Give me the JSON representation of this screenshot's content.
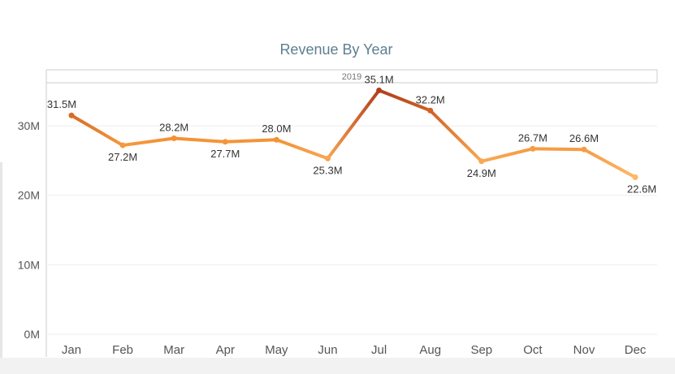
{
  "chart_data": {
    "type": "line",
    "title": "Revenue By Year",
    "panel_header": "2019",
    "categories": [
      "Jan",
      "Feb",
      "Mar",
      "Apr",
      "May",
      "Jun",
      "Jul",
      "Aug",
      "Sep",
      "Oct",
      "Nov",
      "Dec"
    ],
    "series": [
      {
        "values": [
          31.5,
          27.2,
          28.2,
          27.7,
          28.0,
          25.3,
          35.1,
          32.2,
          24.9,
          26.7,
          26.6,
          22.6
        ],
        "labels": [
          "31.5M",
          "27.2M",
          "28.2M",
          "27.7M",
          "28.0M",
          "25.3M",
          "35.1M",
          "32.2M",
          "24.9M",
          "26.7M",
          "26.6M",
          "22.6M"
        ],
        "label_positions": [
          "above",
          "below",
          "above",
          "below",
          "above",
          "below",
          "above",
          "above",
          "below",
          "above",
          "above",
          "below"
        ]
      }
    ],
    "ylim": [
      0,
      36.2
    ],
    "yticks": [
      0,
      10,
      20,
      30
    ],
    "ytick_labels": [
      "0M",
      "10M",
      "20M",
      "30M"
    ],
    "xlabel": "",
    "ylabel": "",
    "grid": true,
    "color_scale": {
      "low": "#FDB86A",
      "mid": "#F28D2E",
      "high": "#B03F1E"
    }
  },
  "colors": {
    "title": "#5C7F8F",
    "axis_text": "#555555",
    "grid": "#EEEEEE",
    "axis_line": "#CCCCCC"
  }
}
